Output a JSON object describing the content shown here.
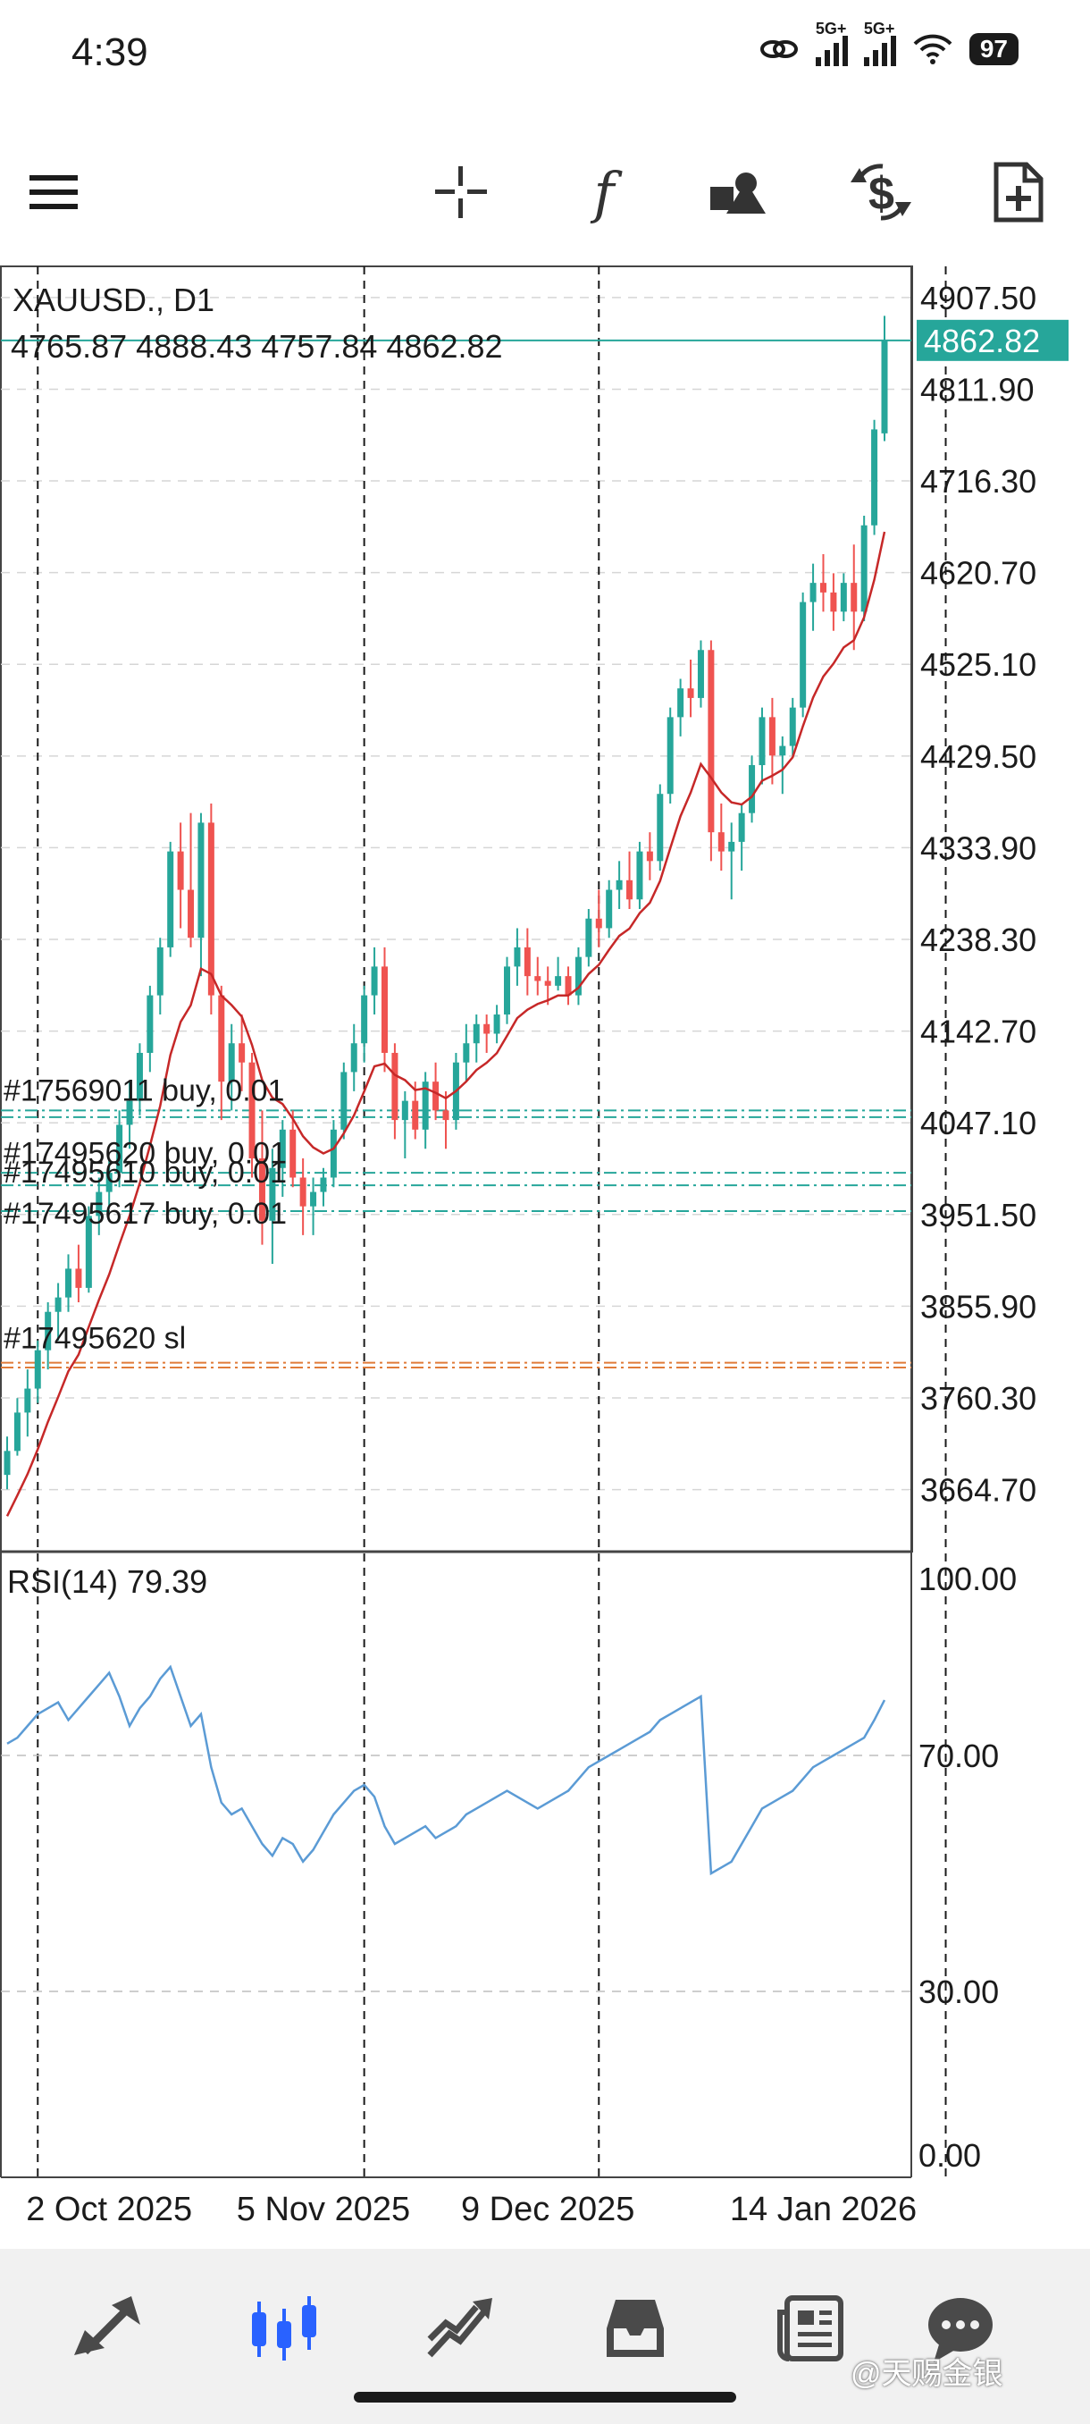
{
  "status_bar": {
    "time": "4:39",
    "network_1": "5G+",
    "network_2": "5G+",
    "battery": "97",
    "icons": [
      "link-icon",
      "signal-icon",
      "signal-icon",
      "wifi-icon",
      "battery-icon"
    ]
  },
  "toolbar": {
    "icons": [
      "menu-icon",
      "crosshair-icon",
      "function-icon",
      "objects-icon",
      "trade-icon",
      "add-window-icon"
    ],
    "function_glyph": "f"
  },
  "chart": {
    "symbol_timeframe": "XAUUSD., D1",
    "ohlc": "4765.87 4888.43 4757.84 4862.82",
    "price_labels": [
      "4907.50",
      "4811.90",
      "4716.30",
      "4620.70",
      "4525.10",
      "4429.50",
      "4333.90",
      "4238.30",
      "4142.70",
      "4047.10",
      "3951.50",
      "3855.90",
      "3760.30",
      "3664.70"
    ],
    "current_price": "4862.82",
    "order_labels": [
      "#17569011 buy, 0.01",
      "#17495620 buy, 0.01",
      "#17495610 buy, 0.01",
      "#17495617 buy, 0.01",
      "#17495620 sl"
    ],
    "rsi_label": "RSI(14) 79.39",
    "rsi_levels": [
      "100.00",
      "70.00",
      "30.00",
      "0.00"
    ],
    "date_labels": [
      "2 Oct 2025",
      "5 Nov 2025",
      "9 Dec 2025",
      "14 Jan 2026"
    ],
    "colors": {
      "bull": "#26a69a",
      "bear": "#ef5350",
      "ma": "#c62828",
      "rsi": "#5b9bd5",
      "order_line": "#26a69a",
      "sl_line": "#e07b39",
      "current_price_bg": "#26a69a"
    }
  },
  "chart_data": {
    "type": "candlestick",
    "symbol": "XAUUSD.",
    "timeframe": "D1",
    "ylim": [
      3600,
      4940
    ],
    "ohlc": [
      [
        3680,
        3720,
        3665,
        3705
      ],
      [
        3705,
        3760,
        3700,
        3745
      ],
      [
        3745,
        3790,
        3720,
        3770
      ],
      [
        3770,
        3820,
        3755,
        3810
      ],
      [
        3810,
        3860,
        3790,
        3850
      ],
      [
        3850,
        3880,
        3820,
        3865
      ],
      [
        3865,
        3910,
        3850,
        3895
      ],
      [
        3895,
        3920,
        3860,
        3875
      ],
      [
        3875,
        3960,
        3870,
        3950
      ],
      [
        3950,
        3990,
        3930,
        3975
      ],
      [
        3975,
        4010,
        3960,
        3995
      ],
      [
        3995,
        4060,
        3980,
        4045
      ],
      [
        4045,
        4090,
        4020,
        4070
      ],
      [
        4070,
        4130,
        4055,
        4120
      ],
      [
        4120,
        4190,
        4100,
        4180
      ],
      [
        4180,
        4240,
        4160,
        4230
      ],
      [
        4230,
        4340,
        4220,
        4330
      ],
      [
        4330,
        4360,
        4250,
        4290
      ],
      [
        4290,
        4370,
        4230,
        4240
      ],
      [
        4240,
        4370,
        4200,
        4360
      ],
      [
        4360,
        4380,
        4160,
        4180
      ],
      [
        4180,
        4190,
        4050,
        4090
      ],
      [
        4090,
        4150,
        4060,
        4130
      ],
      [
        4130,
        4160,
        4080,
        4110
      ],
      [
        4110,
        4120,
        3990,
        4010
      ],
      [
        4010,
        4060,
        3920,
        3945
      ],
      [
        3945,
        4020,
        3900,
        4000
      ],
      [
        4000,
        4050,
        3970,
        4040
      ],
      [
        4040,
        4060,
        3980,
        3990
      ],
      [
        3990,
        4010,
        3930,
        3960
      ],
      [
        3960,
        3990,
        3930,
        3975
      ],
      [
        3975,
        4000,
        3960,
        3990
      ],
      [
        3990,
        4050,
        3980,
        4040
      ],
      [
        4040,
        4110,
        4030,
        4100
      ],
      [
        4100,
        4150,
        4080,
        4130
      ],
      [
        4130,
        4190,
        4110,
        4180
      ],
      [
        4180,
        4230,
        4160,
        4210
      ],
      [
        4210,
        4230,
        4100,
        4120
      ],
      [
        4120,
        4130,
        4030,
        4050
      ],
      [
        4050,
        4080,
        4010,
        4070
      ],
      [
        4070,
        4090,
        4030,
        4040
      ],
      [
        4040,
        4100,
        4020,
        4090
      ],
      [
        4090,
        4110,
        4050,
        4060
      ],
      [
        4060,
        4080,
        4020,
        4050
      ],
      [
        4050,
        4120,
        4040,
        4110
      ],
      [
        4110,
        4150,
        4090,
        4130
      ],
      [
        4130,
        4160,
        4110,
        4150
      ],
      [
        4150,
        4160,
        4120,
        4140
      ],
      [
        4140,
        4170,
        4130,
        4160
      ],
      [
        4160,
        4220,
        4150,
        4210
      ],
      [
        4210,
        4250,
        4190,
        4230
      ],
      [
        4230,
        4250,
        4180,
        4200
      ],
      [
        4200,
        4220,
        4180,
        4195
      ],
      [
        4195,
        4210,
        4170,
        4190
      ],
      [
        4190,
        4220,
        4185,
        4200
      ],
      [
        4200,
        4210,
        4170,
        4180
      ],
      [
        4180,
        4230,
        4170,
        4220
      ],
      [
        4220,
        4270,
        4210,
        4260
      ],
      [
        4260,
        4290,
        4230,
        4250
      ],
      [
        4250,
        4300,
        4240,
        4290
      ],
      [
        4290,
        4320,
        4270,
        4300
      ],
      [
        4300,
        4330,
        4270,
        4280
      ],
      [
        4280,
        4340,
        4270,
        4330
      ],
      [
        4330,
        4350,
        4300,
        4320
      ],
      [
        4320,
        4400,
        4310,
        4390
      ],
      [
        4390,
        4480,
        4380,
        4470
      ],
      [
        4470,
        4510,
        4450,
        4500
      ],
      [
        4500,
        4530,
        4470,
        4490
      ],
      [
        4490,
        4550,
        4480,
        4540
      ],
      [
        4540,
        4550,
        4320,
        4350
      ],
      [
        4350,
        4380,
        4310,
        4330
      ],
      [
        4330,
        4360,
        4280,
        4340
      ],
      [
        4340,
        4380,
        4310,
        4370
      ],
      [
        4370,
        4430,
        4360,
        4420
      ],
      [
        4420,
        4480,
        4400,
        4470
      ],
      [
        4470,
        4490,
        4400,
        4430
      ],
      [
        4430,
        4450,
        4390,
        4440
      ],
      [
        4440,
        4490,
        4430,
        4480
      ],
      [
        4480,
        4600,
        4470,
        4590
      ],
      [
        4590,
        4630,
        4560,
        4610
      ],
      [
        4610,
        4640,
        4580,
        4600
      ],
      [
        4600,
        4620,
        4560,
        4580
      ],
      [
        4580,
        4620,
        4570,
        4610
      ],
      [
        4610,
        4650,
        4540,
        4580
      ],
      [
        4580,
        4680,
        4570,
        4670
      ],
      [
        4670,
        4780,
        4660,
        4770
      ],
      [
        4765.87,
        4888.43,
        4757.84,
        4862.82
      ]
    ],
    "rsi": [
      72,
      73,
      75,
      77,
      78,
      79,
      76,
      78,
      80,
      82,
      84,
      80,
      75,
      78,
      80,
      83,
      85,
      80,
      75,
      77,
      68,
      62,
      60,
      61,
      58,
      55,
      53,
      56,
      55,
      52,
      54,
      57,
      60,
      62,
      64,
      65,
      63,
      58,
      55,
      56,
      57,
      58,
      56,
      57,
      58,
      60,
      61,
      62,
      63,
      64,
      63,
      62,
      61,
      62,
      63,
      64,
      66,
      68,
      69,
      70,
      71,
      72,
      73,
      74,
      76,
      77,
      78,
      79,
      80,
      50,
      51,
      52,
      55,
      58,
      61,
      62,
      63,
      64,
      66,
      68,
      69,
      70,
      71,
      72,
      73,
      76,
      79.39
    ],
    "rsi_levels": [
      70,
      30
    ],
    "rsi_ylim": [
      0,
      100
    ],
    "ma_start": 3620,
    "order_lines": [
      {
        "price": 4060,
        "kind": "buy"
      },
      {
        "price": 4053,
        "kind": "buy"
      },
      {
        "price": 3995,
        "kind": "buy"
      },
      {
        "price": 3982,
        "kind": "buy"
      },
      {
        "price": 3955,
        "kind": "buy"
      },
      {
        "price": 3797,
        "kind": "sl"
      },
      {
        "price": 3792,
        "kind": "sl"
      }
    ],
    "period_separators_index": [
      3,
      35,
      58,
      92
    ],
    "x_labels": [
      "2 Oct 2025",
      "5 Nov 2025",
      "9 Dec 2025",
      "14 Jan 2026"
    ]
  },
  "bottom_nav": {
    "items": [
      "quotes-icon",
      "chart-icon",
      "trade-icon",
      "history-icon",
      "news-icon",
      "messages-icon"
    ]
  },
  "watermark": "@天赐金银"
}
